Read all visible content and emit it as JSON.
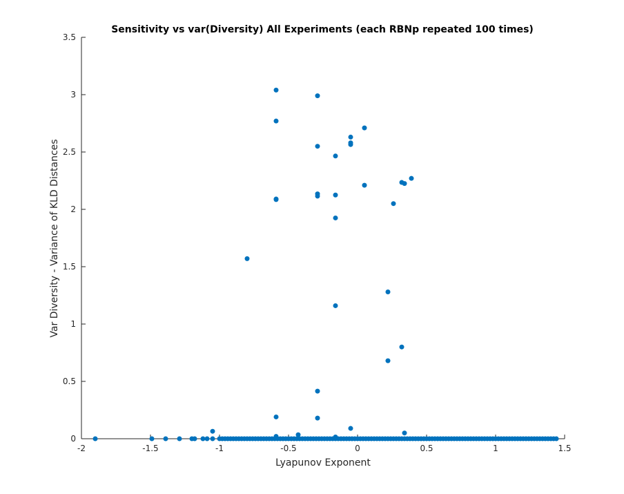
{
  "chart_data": {
    "type": "scatter",
    "title": "Sensitivity vs var(Diversity) All Experiments (each RBNp repeated 100 times)",
    "xlabel": "Lyapunov Exponent",
    "ylabel": "Var Diversity - Variance of KLD Distances",
    "xlim": [
      -2,
      1.5
    ],
    "ylim": [
      0,
      3.5
    ],
    "xticks": [
      -2,
      -1.5,
      -1,
      -0.5,
      0,
      0.5,
      1,
      1.5
    ],
    "xtick_labels": [
      "-2",
      "-1.5",
      "-1",
      "-0.5",
      "0",
      "0.5",
      "1",
      "1.5"
    ],
    "yticks": [
      0,
      0.5,
      1,
      1.5,
      2,
      2.5,
      3,
      3.5
    ],
    "ytick_labels": [
      "0",
      "0.5",
      "1",
      "1.5",
      "2",
      "2.5",
      "3",
      "3.5"
    ],
    "grid": false,
    "marker_color": "#0072BD",
    "series": [
      {
        "points": [
          [
            -0.59,
            3.04
          ],
          [
            -0.59,
            2.77
          ],
          [
            -0.59,
            2.09
          ],
          [
            -0.59,
            2.085
          ],
          [
            -0.59,
            0.19
          ],
          [
            -0.59,
            0.02
          ],
          [
            -0.29,
            2.99
          ],
          [
            -0.29,
            2.55
          ],
          [
            -0.29,
            2.135
          ],
          [
            -0.29,
            2.115
          ],
          [
            -0.29,
            0.415
          ],
          [
            -0.29,
            0.18
          ],
          [
            -0.16,
            2.465
          ],
          [
            -0.16,
            2.125
          ],
          [
            -0.16,
            1.925
          ],
          [
            -0.16,
            1.16
          ],
          [
            -0.16,
            0.015
          ],
          [
            -0.05,
            2.63
          ],
          [
            -0.05,
            2.58
          ],
          [
            -0.05,
            2.565
          ],
          [
            -0.05,
            0.09
          ],
          [
            0.05,
            2.71
          ],
          [
            0.05,
            2.21
          ],
          [
            -0.8,
            1.57
          ],
          [
            0.22,
            1.28
          ],
          [
            0.22,
            0.68
          ],
          [
            0.26,
            2.05
          ],
          [
            0.32,
            2.235
          ],
          [
            0.34,
            2.225
          ],
          [
            0.39,
            2.27
          ],
          [
            0.32,
            0.8
          ],
          [
            0.34,
            0.05
          ],
          [
            -1.05,
            0.065
          ],
          [
            -0.43,
            0.035
          ],
          [
            -1.9,
            0.0
          ],
          [
            -1.49,
            0.0
          ],
          [
            -1.39,
            0.0
          ],
          [
            -1.29,
            0.0
          ],
          [
            -1.2,
            0.0
          ],
          [
            -1.18,
            0.0
          ],
          [
            -1.12,
            0.0
          ],
          [
            -1.09,
            0.0
          ],
          [
            -1.05,
            0.0
          ]
        ],
        "baseline_points": {
          "x_start": -1.0,
          "x_end": 1.45,
          "x_step": 0.02,
          "y": 0.0
        }
      }
    ]
  }
}
